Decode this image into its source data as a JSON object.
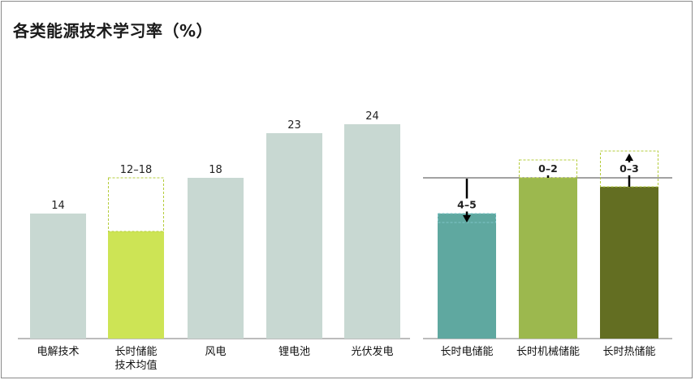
{
  "chart_data": [
    {
      "type": "bar",
      "title": "各类能源技术学习率（%）",
      "categories": [
        "电解技术",
        "长时储能技术均值",
        "风电",
        "锂电池",
        "光伏发电"
      ],
      "category_lines": [
        [
          "电解技术"
        ],
        [
          "长时储能",
          "技术均值"
        ],
        [
          "风电"
        ],
        [
          "锂电池"
        ],
        [
          "光伏发电"
        ]
      ],
      "values": [
        14,
        12,
        18,
        23,
        24
      ],
      "ranges": [
        null,
        [
          12,
          18
        ],
        null,
        null,
        null
      ],
      "value_labels": [
        "14",
        "12–18",
        "18",
        "23",
        "24"
      ],
      "ylim": [
        0,
        26
      ],
      "colors": [
        "#c8d8d2",
        "#cde455",
        "#c8d8d2",
        "#c8d8d2",
        "#c8d8d2"
      ],
      "range_outline_color": "#b5cc3c"
    },
    {
      "type": "bar",
      "categories": [
        "长时电储能",
        "长时机械储能",
        "长时热储能"
      ],
      "base": 18,
      "values": [
        14,
        18,
        17
      ],
      "ranges": [
        [
          13,
          14
        ],
        [
          18,
          20
        ],
        [
          17,
          21
        ]
      ],
      "arrows": [
        "down",
        "up",
        "up"
      ],
      "value_labels": [
        "4–5",
        "0–2",
        "0–3"
      ],
      "ylim": [
        0,
        26
      ],
      "colors": [
        "#5fa8a0",
        "#9cb84e",
        "#636e22"
      ],
      "range_outline_colors": [
        "#7ec4c8",
        "#b5cc3c",
        "#b5cc3c"
      ]
    }
  ]
}
